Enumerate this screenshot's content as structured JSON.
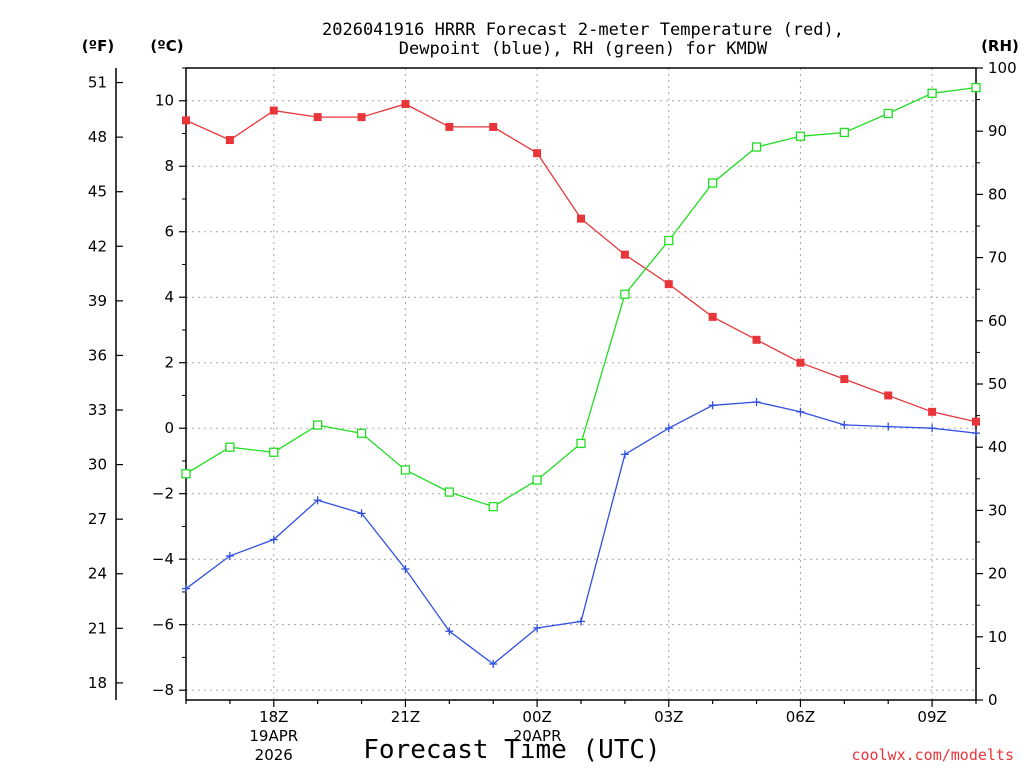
{
  "chart_data": {
    "type": "line",
    "title_line1": "2026041916 HRRR Forecast 2-meter Temperature (red),",
    "title_line2": "Dewpoint (blue), RH (green) for KMDW",
    "xlabel": "Forecast Time (UTC)",
    "credit": "coolwx.com/modelts",
    "unit_f": "(ºF)",
    "unit_c": "(ºC)",
    "unit_rh": "(RH)",
    "hours": [
      16,
      17,
      18,
      19,
      20,
      21,
      22,
      23,
      24,
      25,
      26,
      27,
      28,
      29,
      30,
      31,
      32,
      33,
      34
    ],
    "xlim": [
      16,
      34
    ],
    "x_ticks": [
      {
        "hour": 18,
        "lines": [
          "18Z",
          "19APR",
          "2026"
        ]
      },
      {
        "hour": 21,
        "lines": [
          "21Z"
        ]
      },
      {
        "hour": 24,
        "lines": [
          "00Z",
          "20APR"
        ]
      },
      {
        "hour": 27,
        "lines": [
          "03Z"
        ]
      },
      {
        "hour": 30,
        "lines": [
          "06Z"
        ]
      },
      {
        "hour": 33,
        "lines": [
          "09Z"
        ]
      }
    ],
    "c_axis": {
      "ylim": [
        -8.3,
        11
      ],
      "ticks": [
        "−8",
        "−6",
        "−4",
        "−2",
        "0",
        "2",
        "4",
        "6",
        "8",
        "10"
      ],
      "values": [
        -8,
        -6,
        -4,
        -2,
        0,
        2,
        4,
        6,
        8,
        10
      ]
    },
    "f_axis": {
      "ticks": [
        "18",
        "21",
        "24",
        "27",
        "30",
        "33",
        "36",
        "39",
        "42",
        "45",
        "48",
        "51"
      ],
      "values": [
        18,
        21,
        24,
        27,
        30,
        33,
        36,
        39,
        42,
        45,
        48,
        51
      ]
    },
    "rh_axis": {
      "ylim": [
        0,
        100
      ],
      "ticks": [
        "0",
        "10",
        "20",
        "30",
        "40",
        "50",
        "60",
        "70",
        "80",
        "90",
        "100"
      ],
      "values": [
        0,
        10,
        20,
        30,
        40,
        50,
        60,
        70,
        80,
        90,
        100
      ]
    },
    "series": [
      {
        "name": "Temperature",
        "unit": "C",
        "color": "#e8353a",
        "marker": "filled-square",
        "values": [
          9.4,
          8.8,
          9.7,
          9.5,
          9.5,
          9.9,
          9.2,
          9.2,
          8.4,
          6.4,
          5.3,
          4.4,
          3.4,
          2.7,
          2.0,
          1.5,
          1.0,
          0.5,
          0.2
        ]
      },
      {
        "name": "Dewpoint",
        "unit": "C",
        "color": "#3050e0",
        "marker": "plus",
        "values": [
          -4.9,
          -3.9,
          -3.4,
          -2.2,
          -2.6,
          -4.3,
          -6.2,
          -7.2,
          -6.1,
          -5.9,
          -0.8,
          0.0,
          0.7,
          0.8,
          0.5,
          0.1,
          0.05,
          0.0,
          -0.15
        ]
      },
      {
        "name": "RH",
        "unit": "%",
        "color": "#22dd22",
        "marker": "open-square",
        "values": [
          35.8,
          40.0,
          39.2,
          43.5,
          42.2,
          36.4,
          32.9,
          30.6,
          34.8,
          40.6,
          64.2,
          72.7,
          81.8,
          87.5,
          89.2,
          89.8,
          92.8,
          96.0,
          96.9
        ]
      }
    ]
  }
}
